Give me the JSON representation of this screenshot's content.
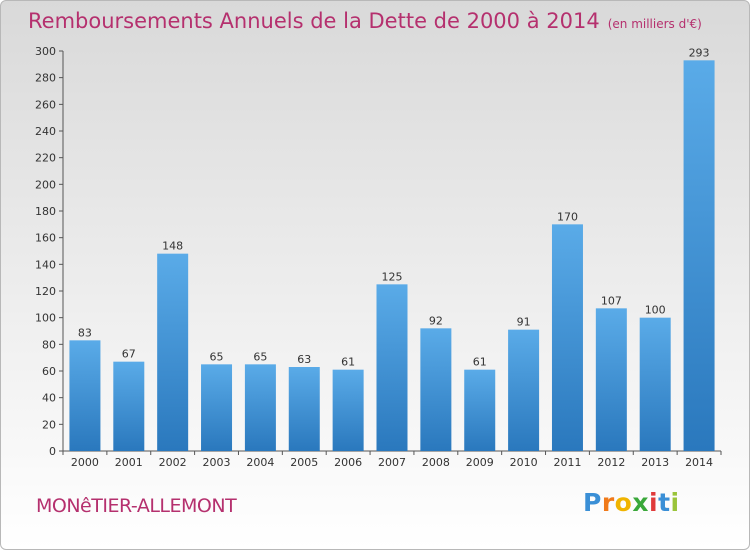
{
  "title": "Remboursements Annuels de la Dette de 2000 à 2014",
  "title_unit": "(en milliers d'€)",
  "commune": "MONêTIER-ALLEMONT",
  "logo": {
    "letters": [
      {
        "ch": "P",
        "color": "#3a8fd6"
      },
      {
        "ch": "r",
        "color": "#f07a1a"
      },
      {
        "ch": "o",
        "color": "#f0b400"
      },
      {
        "ch": "x",
        "color": "#3aa83a"
      },
      {
        "ch": "i",
        "color": "#e03a3a"
      },
      {
        "ch": "t",
        "color": "#3a8fd6"
      },
      {
        "ch": "i",
        "color": "#9ac43a"
      }
    ]
  },
  "colors": {
    "bar_light": "#5aabe8",
    "bar_dark": "#2a78bd",
    "title": "#b5306e"
  },
  "chart_data": {
    "type": "bar",
    "categories": [
      "2000",
      "2001",
      "2002",
      "2003",
      "2004",
      "2005",
      "2006",
      "2007",
      "2008",
      "2009",
      "2010",
      "2011",
      "2012",
      "2013",
      "2014"
    ],
    "values": [
      83,
      67,
      148,
      65,
      65,
      63,
      61,
      125,
      92,
      61,
      91,
      170,
      107,
      100,
      293
    ],
    "ylim": [
      0,
      300
    ],
    "yticks": [
      0,
      20,
      40,
      60,
      80,
      100,
      120,
      140,
      160,
      180,
      200,
      220,
      240,
      260,
      280,
      300
    ],
    "grid": false,
    "data_labels": true
  }
}
